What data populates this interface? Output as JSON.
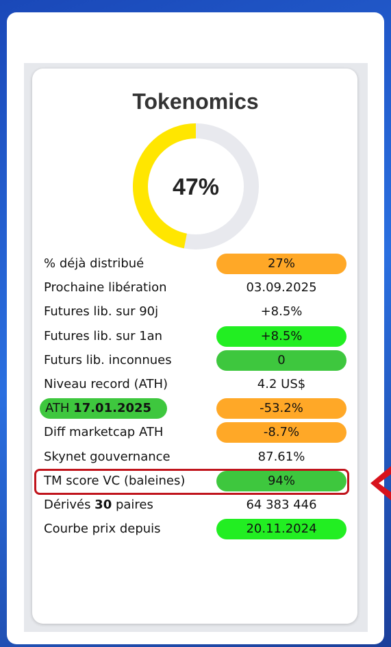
{
  "title": "Tokenomics",
  "donut": {
    "value": 47,
    "label": "47%",
    "color": "#ffe600",
    "track": "#e8e9ee"
  },
  "rows": [
    {
      "label": [
        {
          "text": "% déjà distribué"
        }
      ],
      "value": "27%",
      "pill": "#ffa827"
    },
    {
      "label": [
        {
          "text": "Prochaine libération"
        }
      ],
      "value": "03.09.2025",
      "pill": null
    },
    {
      "label": [
        {
          "text": "Futures lib. sur 90j"
        }
      ],
      "value": "+8.5%",
      "pill": null
    },
    {
      "label": [
        {
          "text": "Futures lib. sur 1an"
        }
      ],
      "value": "+8.5%",
      "pill": "#22ee22"
    },
    {
      "label": [
        {
          "text": "Futurs lib. inconnues"
        }
      ],
      "value": "0",
      "pill": "#3ec73e"
    },
    {
      "label": [
        {
          "text": "Niveau record (ATH)"
        }
      ],
      "value": "4.2 US$",
      "pill": null
    },
    {
      "label": [
        {
          "text": "ATH "
        },
        {
          "text": "17.01.2025",
          "bold": true
        }
      ],
      "label_pill": "#3ec73e",
      "value": "-53.2%",
      "pill": "#ffa827"
    },
    {
      "label": [
        {
          "text": "Diff marketcap ATH"
        }
      ],
      "value": "-8.7%",
      "pill": "#ffa827"
    },
    {
      "label": [
        {
          "text": "Skynet gouvernance"
        }
      ],
      "value": "87.61%",
      "pill": null
    },
    {
      "label": [
        {
          "text": "TM score VC (baleines)"
        }
      ],
      "value": "94%",
      "pill": "#3ec73e",
      "highlight": true
    },
    {
      "label": [
        {
          "text": "Dérivés "
        },
        {
          "text": "30",
          "bold": true
        },
        {
          "text": " paires"
        }
      ],
      "value": "64 383 446",
      "pill": null
    },
    {
      "label": [
        {
          "text": "Courbe prix depuis"
        }
      ],
      "value": "20.11.2024",
      "pill": "#22ee22"
    }
  ]
}
